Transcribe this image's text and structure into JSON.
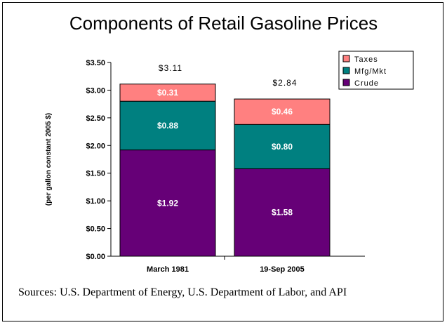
{
  "chart_data": {
    "type": "bar",
    "stacked": true,
    "title": "Components of Retail Gasoline Prices",
    "ylabel": "(per gallon constant 2005 $)",
    "xlabel": "",
    "ylim": [
      0,
      3.5
    ],
    "yticks": [
      "$0.00",
      "$0.50",
      "$1.00",
      "$1.50",
      "$2.00",
      "$2.50",
      "$3.00",
      "$3.50"
    ],
    "ytick_values": [
      0,
      0.5,
      1.0,
      1.5,
      2.0,
      2.5,
      3.0,
      3.5
    ],
    "categories": [
      "March 1981",
      "19-Sep  2005"
    ],
    "series": [
      {
        "name": "Crude",
        "color": "#660077",
        "values": [
          1.92,
          1.58
        ],
        "labels": [
          "$1.92",
          "$1.58"
        ]
      },
      {
        "name": "Mfg/Mkt",
        "color": "#008080",
        "values": [
          0.88,
          0.8
        ],
        "labels": [
          "$0.88",
          "$0.80"
        ]
      },
      {
        "name": "Taxes",
        "color": "#ff8080",
        "values": [
          0.31,
          0.46
        ],
        "labels": [
          "$0.31",
          "$0.46"
        ]
      }
    ],
    "totals": [
      "$3.11",
      "$2.84"
    ],
    "total_values": [
      3.11,
      2.84
    ],
    "legend_order": [
      "Taxes",
      "Mfg/Mkt",
      "Crude"
    ],
    "legend_position": "top-right",
    "grid": false
  },
  "sources": "Sources: U.S. Department of Energy, U.S. Department of Labor, and API"
}
